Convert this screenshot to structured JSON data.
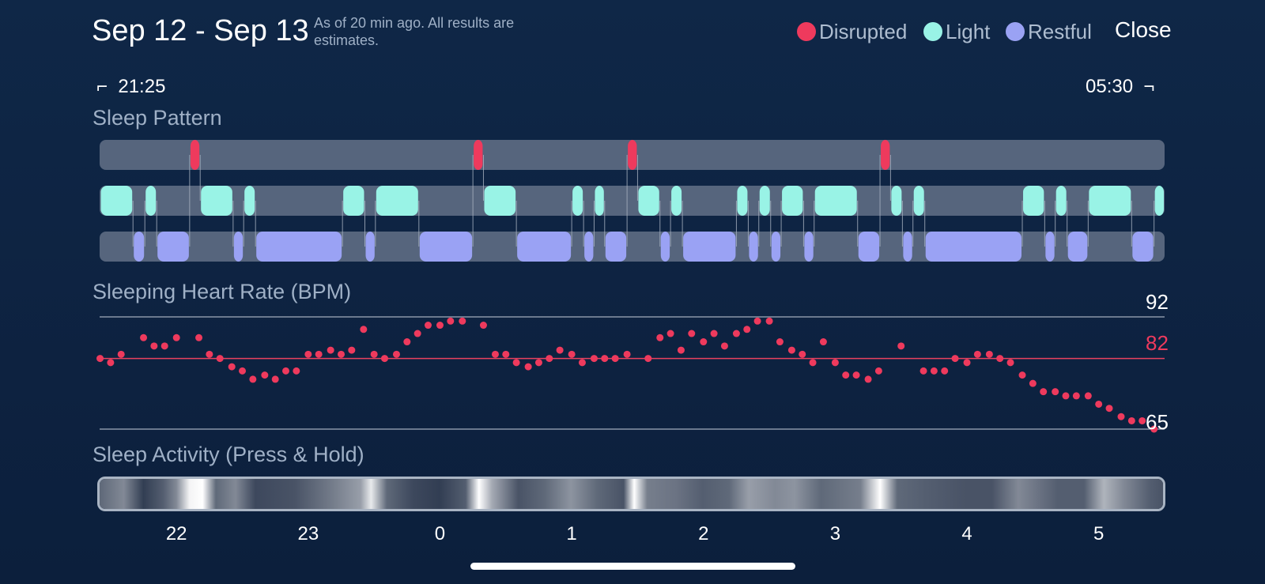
{
  "header": {
    "title": "Sep 12 - Sep 13",
    "subtitle": "As of 20 min ago. All results are estimates.",
    "close_label": "Close"
  },
  "legend": [
    {
      "label": "Disrupted",
      "color": "#ee3a5d"
    },
    {
      "label": "Light",
      "color": "#99f3e6"
    },
    {
      "label": "Restful",
      "color": "#9aa2f4"
    }
  ],
  "time_range": {
    "start": "21:25",
    "end": "05:30",
    "start_bracket": "⌐",
    "end_bracket": "¬"
  },
  "sleep_pattern": {
    "title": "Sleep Pattern",
    "start_hour": 21.4167,
    "end_hour": 29.5,
    "colors": {
      "track": "#56657d",
      "disrupted": "#ee3a5d",
      "light": "#99f3e6",
      "restful": "#9aa2f4",
      "connector": "#a9b3c2"
    },
    "segments": [
      {
        "stage": "light",
        "start": 21.42,
        "end": 21.67
      },
      {
        "stage": "restful",
        "start": 21.67,
        "end": 21.76
      },
      {
        "stage": "light",
        "start": 21.76,
        "end": 21.85
      },
      {
        "stage": "restful",
        "start": 21.85,
        "end": 22.1
      },
      {
        "stage": "disrupted",
        "start": 22.1,
        "end": 22.18
      },
      {
        "stage": "light",
        "start": 22.18,
        "end": 22.43
      },
      {
        "stage": "restful",
        "start": 22.43,
        "end": 22.51
      },
      {
        "stage": "light",
        "start": 22.51,
        "end": 22.6
      },
      {
        "stage": "restful",
        "start": 22.6,
        "end": 23.26
      },
      {
        "stage": "light",
        "start": 23.26,
        "end": 23.43
      },
      {
        "stage": "restful",
        "start": 23.43,
        "end": 23.51
      },
      {
        "stage": "light",
        "start": 23.51,
        "end": 23.84
      },
      {
        "stage": "restful",
        "start": 23.84,
        "end": 24.25
      },
      {
        "stage": "disrupted",
        "start": 24.25,
        "end": 24.33
      },
      {
        "stage": "light",
        "start": 24.33,
        "end": 24.58
      },
      {
        "stage": "restful",
        "start": 24.58,
        "end": 25.0
      },
      {
        "stage": "light",
        "start": 25.0,
        "end": 25.09
      },
      {
        "stage": "restful",
        "start": 25.09,
        "end": 25.17
      },
      {
        "stage": "light",
        "start": 25.17,
        "end": 25.25
      },
      {
        "stage": "restful",
        "start": 25.25,
        "end": 25.42
      },
      {
        "stage": "disrupted",
        "start": 25.42,
        "end": 25.5
      },
      {
        "stage": "light",
        "start": 25.5,
        "end": 25.67
      },
      {
        "stage": "restful",
        "start": 25.67,
        "end": 25.75
      },
      {
        "stage": "light",
        "start": 25.75,
        "end": 25.84
      },
      {
        "stage": "restful",
        "start": 25.84,
        "end": 26.25
      },
      {
        "stage": "light",
        "start": 26.25,
        "end": 26.34
      },
      {
        "stage": "restful",
        "start": 26.34,
        "end": 26.42
      },
      {
        "stage": "light",
        "start": 26.42,
        "end": 26.51
      },
      {
        "stage": "restful",
        "start": 26.51,
        "end": 26.59
      },
      {
        "stage": "light",
        "start": 26.59,
        "end": 26.76
      },
      {
        "stage": "restful",
        "start": 26.76,
        "end": 26.84
      },
      {
        "stage": "light",
        "start": 26.84,
        "end": 27.17
      },
      {
        "stage": "restful",
        "start": 27.17,
        "end": 27.34
      },
      {
        "stage": "disrupted",
        "start": 27.34,
        "end": 27.42
      },
      {
        "stage": "light",
        "start": 27.42,
        "end": 27.51
      },
      {
        "stage": "restful",
        "start": 27.51,
        "end": 27.59
      },
      {
        "stage": "light",
        "start": 27.59,
        "end": 27.68
      },
      {
        "stage": "restful",
        "start": 27.68,
        "end": 28.42
      },
      {
        "stage": "light",
        "start": 28.42,
        "end": 28.59
      },
      {
        "stage": "restful",
        "start": 28.59,
        "end": 28.67
      },
      {
        "stage": "light",
        "start": 28.67,
        "end": 28.76
      },
      {
        "stage": "restful",
        "start": 28.76,
        "end": 28.92
      },
      {
        "stage": "light",
        "start": 28.92,
        "end": 29.25
      },
      {
        "stage": "restful",
        "start": 29.25,
        "end": 29.42
      },
      {
        "stage": "light",
        "start": 29.42,
        "end": 29.5
      }
    ]
  },
  "heart_rate": {
    "title": "Sleeping Heart Rate (BPM)",
    "max_label": "92",
    "avg_label": "82",
    "min_label": "65",
    "max": 92,
    "avg": 82,
    "min": 65,
    "colors": {
      "dot": "#ee3a5d",
      "avg_line": "#e8415f",
      "ref_line": "#8a96a8",
      "avg_label": "#ee3a5d"
    },
    "points": [
      [
        21.42,
        82
      ],
      [
        21.5,
        81
      ],
      [
        21.58,
        83
      ],
      [
        21.75,
        87
      ],
      [
        21.83,
        85
      ],
      [
        21.91,
        85
      ],
      [
        22.0,
        87
      ],
      [
        22.17,
        87
      ],
      [
        22.25,
        83
      ],
      [
        22.33,
        82
      ],
      [
        22.42,
        80
      ],
      [
        22.5,
        79
      ],
      [
        22.58,
        77
      ],
      [
        22.67,
        78
      ],
      [
        22.75,
        77
      ],
      [
        22.83,
        79
      ],
      [
        22.91,
        79
      ],
      [
        23.0,
        83
      ],
      [
        23.08,
        83
      ],
      [
        23.17,
        84
      ],
      [
        23.25,
        83
      ],
      [
        23.33,
        84
      ],
      [
        23.42,
        89
      ],
      [
        23.5,
        83
      ],
      [
        23.58,
        82
      ],
      [
        23.67,
        83
      ],
      [
        23.75,
        86
      ],
      [
        23.83,
        88
      ],
      [
        23.91,
        90
      ],
      [
        24.0,
        90
      ],
      [
        24.08,
        91
      ],
      [
        24.17,
        91
      ],
      [
        24.33,
        90
      ],
      [
        24.42,
        83
      ],
      [
        24.5,
        83
      ],
      [
        24.58,
        81
      ],
      [
        24.67,
        80
      ],
      [
        24.75,
        81
      ],
      [
        24.83,
        82
      ],
      [
        24.91,
        84
      ],
      [
        25.0,
        83
      ],
      [
        25.08,
        81
      ],
      [
        25.17,
        82
      ],
      [
        25.25,
        82
      ],
      [
        25.33,
        82
      ],
      [
        25.42,
        83
      ],
      [
        25.58,
        82
      ],
      [
        25.67,
        87
      ],
      [
        25.75,
        88
      ],
      [
        25.83,
        84
      ],
      [
        25.91,
        88
      ],
      [
        26.0,
        86
      ],
      [
        26.08,
        88
      ],
      [
        26.16,
        85
      ],
      [
        26.25,
        88
      ],
      [
        26.33,
        89
      ],
      [
        26.41,
        91
      ],
      [
        26.5,
        91
      ],
      [
        26.58,
        86
      ],
      [
        26.67,
        84
      ],
      [
        26.75,
        83
      ],
      [
        26.83,
        81
      ],
      [
        26.91,
        86
      ],
      [
        27.0,
        81
      ],
      [
        27.08,
        78
      ],
      [
        27.16,
        78
      ],
      [
        27.25,
        77
      ],
      [
        27.33,
        79
      ],
      [
        27.5,
        85
      ],
      [
        27.67,
        79
      ],
      [
        27.75,
        79
      ],
      [
        27.83,
        79
      ],
      [
        27.91,
        82
      ],
      [
        28.0,
        81
      ],
      [
        28.08,
        83
      ],
      [
        28.17,
        83
      ],
      [
        28.25,
        82
      ],
      [
        28.33,
        81
      ],
      [
        28.42,
        78
      ],
      [
        28.5,
        76
      ],
      [
        28.58,
        74
      ],
      [
        28.67,
        74
      ],
      [
        28.75,
        73
      ],
      [
        28.83,
        73
      ],
      [
        28.92,
        73
      ],
      [
        29.0,
        71
      ],
      [
        29.08,
        70
      ],
      [
        29.17,
        68
      ],
      [
        29.25,
        67
      ],
      [
        29.33,
        67
      ],
      [
        29.42,
        65
      ]
    ]
  },
  "activity": {
    "title": "Sleep Activity (Press & Hold)",
    "colors": {
      "base": "#1b2840",
      "peak": "#ffffff",
      "frame": "#a9b4c3"
    },
    "intensity": [
      [
        21.42,
        0.3
      ],
      [
        21.6,
        0.45
      ],
      [
        21.75,
        0.1
      ],
      [
        21.9,
        0.25
      ],
      [
        22.0,
        0.45
      ],
      [
        22.1,
        0.95
      ],
      [
        22.2,
        1.0
      ],
      [
        22.3,
        0.3
      ],
      [
        22.45,
        0.45
      ],
      [
        22.6,
        0.15
      ],
      [
        22.9,
        0.2
      ],
      [
        23.2,
        0.4
      ],
      [
        23.4,
        0.55
      ],
      [
        23.48,
        0.9
      ],
      [
        23.6,
        0.3
      ],
      [
        23.8,
        0.15
      ],
      [
        24.0,
        0.1
      ],
      [
        24.2,
        0.25
      ],
      [
        24.3,
        1.0
      ],
      [
        24.4,
        0.6
      ],
      [
        24.6,
        0.2
      ],
      [
        24.8,
        0.3
      ],
      [
        25.0,
        0.5
      ],
      [
        25.2,
        0.3
      ],
      [
        25.4,
        0.2
      ],
      [
        25.48,
        1.0
      ],
      [
        25.58,
        0.4
      ],
      [
        25.8,
        0.35
      ],
      [
        26.0,
        0.25
      ],
      [
        26.2,
        0.3
      ],
      [
        26.35,
        0.55
      ],
      [
        26.55,
        0.45
      ],
      [
        26.7,
        0.5
      ],
      [
        26.9,
        0.3
      ],
      [
        27.2,
        0.4
      ],
      [
        27.35,
        1.0
      ],
      [
        27.48,
        0.3
      ],
      [
        27.7,
        0.25
      ],
      [
        28.0,
        0.2
      ],
      [
        28.2,
        0.2
      ],
      [
        28.4,
        0.45
      ],
      [
        28.55,
        0.35
      ],
      [
        28.7,
        0.25
      ],
      [
        28.9,
        0.25
      ],
      [
        29.05,
        0.65
      ],
      [
        29.2,
        0.45
      ],
      [
        29.4,
        0.25
      ],
      [
        29.5,
        0.2
      ]
    ]
  },
  "hour_ticks": [
    {
      "label": "22",
      "hour": 22
    },
    {
      "label": "23",
      "hour": 23
    },
    {
      "label": "0",
      "hour": 24
    },
    {
      "label": "1",
      "hour": 25
    },
    {
      "label": "2",
      "hour": 26
    },
    {
      "label": "3",
      "hour": 27
    },
    {
      "label": "4",
      "hour": 28
    },
    {
      "label": "5",
      "hour": 29
    }
  ]
}
